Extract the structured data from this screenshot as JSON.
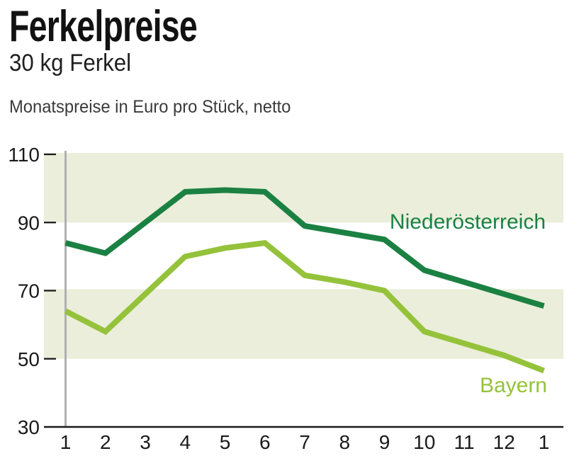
{
  "header": {
    "title": "Ferkelpreise",
    "subtitle": "30 kg Ferkel",
    "note": "Monatspreise in Euro pro Stück, netto"
  },
  "chart_data": {
    "type": "line",
    "title": "Ferkelpreise",
    "subtitle": "30 kg Ferkel",
    "unit_note": "Monatspreise in Euro pro Stück, netto",
    "categories": [
      "1",
      "2",
      "3",
      "4",
      "5",
      "6",
      "7",
      "8",
      "9",
      "10",
      "11",
      "12",
      "1"
    ],
    "series": [
      {
        "name": "Niederösterreich",
        "color": "#1b8143",
        "values": [
          84,
          81,
          90,
          99,
          99.5,
          99,
          89,
          87,
          85,
          76,
          72.5,
          69,
          65.5
        ]
      },
      {
        "name": "Bayern",
        "color": "#95c23b",
        "values": [
          64,
          58,
          69,
          80,
          82.5,
          84,
          74.5,
          72.5,
          70,
          58,
          54.5,
          51,
          46.5
        ]
      }
    ],
    "xlabel": "",
    "ylabel": "",
    "ylim": [
      30,
      112
    ],
    "y_ticks": [
      110,
      90,
      70,
      50,
      30
    ],
    "bands": [
      [
        90,
        110
      ],
      [
        50,
        70
      ]
    ],
    "band_color": "#eaeeda",
    "axis_color": "#1a1a1a",
    "start_line_color": "#b0b0b0",
    "grid": false,
    "legend_position": "inline-right"
  }
}
